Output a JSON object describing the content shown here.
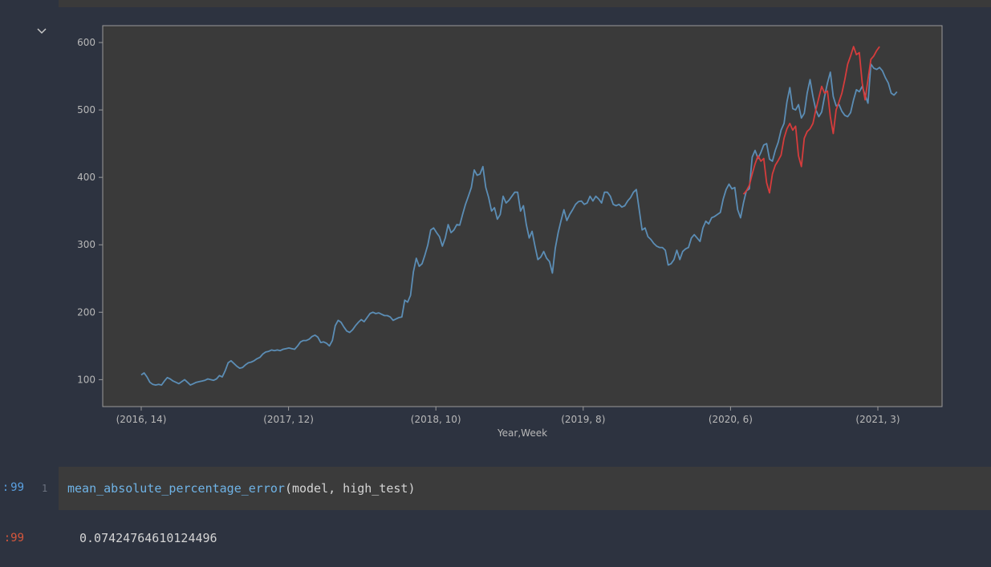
{
  "notebook": {
    "cell_in_prompt": "99",
    "cell_in_prefix": ":",
    "cell_out_prompt": "99",
    "cell_out_prefix": ":",
    "line_number": "1",
    "code": {
      "function_name": "mean_absolute_percentage_error",
      "args": "(model, high_test)"
    },
    "output_value": "0.07424764610124496",
    "colors": {
      "background": "#2d3340",
      "cell_background": "#3b3b3b",
      "prompt_in": "#5aa0e0",
      "prompt_out": "#d6573c"
    }
  },
  "chart_data": {
    "type": "line",
    "xlabel": "Year,Week",
    "ylabel": "",
    "title": "",
    "x_tick_labels": [
      "(2016, 14)",
      "(2017, 12)",
      "(2018, 10)",
      "(2019, 8)",
      "(2020, 6)",
      "(2021, 3)"
    ],
    "y_ticks": [
      100,
      200,
      300,
      400,
      500,
      600
    ],
    "ylim": [
      60,
      625
    ],
    "x_count": 264,
    "grid": false,
    "legend": "none",
    "series": [
      {
        "color": "#5b8db5",
        "points": [
          [
            0,
            107
          ],
          [
            1,
            110
          ],
          [
            2,
            104
          ],
          [
            3,
            96
          ],
          [
            4,
            93
          ],
          [
            5,
            92
          ],
          [
            6,
            93
          ],
          [
            7,
            92
          ],
          [
            8,
            98
          ],
          [
            9,
            103
          ],
          [
            10,
            101
          ],
          [
            11,
            98
          ],
          [
            12,
            96
          ],
          [
            13,
            94
          ],
          [
            14,
            97
          ],
          [
            15,
            100
          ],
          [
            16,
            96
          ],
          [
            17,
            92
          ],
          [
            18,
            94
          ],
          [
            19,
            96
          ],
          [
            20,
            97
          ],
          [
            21,
            98
          ],
          [
            22,
            99
          ],
          [
            23,
            101
          ],
          [
            24,
            100
          ],
          [
            25,
            99
          ],
          [
            26,
            101
          ],
          [
            27,
            106
          ],
          [
            28,
            104
          ],
          [
            29,
            113
          ],
          [
            30,
            125
          ],
          [
            31,
            128
          ],
          [
            32,
            124
          ],
          [
            33,
            120
          ],
          [
            34,
            117
          ],
          [
            35,
            118
          ],
          [
            36,
            122
          ],
          [
            37,
            125
          ],
          [
            38,
            126
          ],
          [
            39,
            128
          ],
          [
            40,
            131
          ],
          [
            41,
            133
          ],
          [
            42,
            138
          ],
          [
            43,
            141
          ],
          [
            44,
            142
          ],
          [
            45,
            144
          ],
          [
            46,
            143
          ],
          [
            47,
            144
          ],
          [
            48,
            143
          ],
          [
            49,
            145
          ],
          [
            50,
            146
          ],
          [
            51,
            147
          ],
          [
            52,
            146
          ],
          [
            53,
            145
          ],
          [
            54,
            150
          ],
          [
            55,
            156
          ],
          [
            56,
            158
          ],
          [
            57,
            158
          ],
          [
            58,
            160
          ],
          [
            59,
            164
          ],
          [
            60,
            166
          ],
          [
            61,
            163
          ],
          [
            62,
            155
          ],
          [
            63,
            156
          ],
          [
            64,
            154
          ],
          [
            65,
            150
          ],
          [
            66,
            158
          ],
          [
            67,
            180
          ],
          [
            68,
            188
          ],
          [
            69,
            185
          ],
          [
            70,
            178
          ],
          [
            71,
            172
          ],
          [
            72,
            170
          ],
          [
            73,
            174
          ],
          [
            74,
            180
          ],
          [
            75,
            185
          ],
          [
            76,
            189
          ],
          [
            77,
            186
          ],
          [
            78,
            192
          ],
          [
            79,
            198
          ],
          [
            80,
            200
          ],
          [
            81,
            198
          ],
          [
            82,
            199
          ],
          [
            83,
            197
          ],
          [
            84,
            195
          ],
          [
            85,
            195
          ],
          [
            86,
            193
          ],
          [
            87,
            188
          ],
          [
            88,
            190
          ],
          [
            89,
            192
          ],
          [
            90,
            193
          ],
          [
            91,
            218
          ],
          [
            92,
            215
          ],
          [
            93,
            225
          ],
          [
            94,
            260
          ],
          [
            95,
            280
          ],
          [
            96,
            268
          ],
          [
            97,
            272
          ],
          [
            98,
            285
          ],
          [
            99,
            300
          ],
          [
            100,
            322
          ],
          [
            101,
            325
          ],
          [
            102,
            318
          ],
          [
            103,
            312
          ],
          [
            104,
            298
          ],
          [
            105,
            310
          ],
          [
            106,
            330
          ],
          [
            107,
            318
          ],
          [
            108,
            322
          ],
          [
            109,
            330
          ],
          [
            110,
            329
          ],
          [
            111,
            345
          ],
          [
            112,
            360
          ],
          [
            113,
            372
          ],
          [
            114,
            385
          ],
          [
            115,
            411
          ],
          [
            116,
            403
          ],
          [
            117,
            405
          ],
          [
            118,
            416
          ],
          [
            119,
            385
          ],
          [
            120,
            370
          ],
          [
            121,
            350
          ],
          [
            122,
            355
          ],
          [
            123,
            338
          ],
          [
            124,
            345
          ],
          [
            125,
            372
          ],
          [
            126,
            362
          ],
          [
            127,
            366
          ],
          [
            128,
            372
          ],
          [
            129,
            378
          ],
          [
            130,
            378
          ],
          [
            131,
            350
          ],
          [
            132,
            358
          ],
          [
            133,
            330
          ],
          [
            134,
            310
          ],
          [
            135,
            320
          ],
          [
            136,
            298
          ],
          [
            137,
            278
          ],
          [
            138,
            282
          ],
          [
            139,
            290
          ],
          [
            140,
            280
          ],
          [
            141,
            275
          ],
          [
            142,
            258
          ],
          [
            143,
            295
          ],
          [
            144,
            318
          ],
          [
            145,
            336
          ],
          [
            146,
            352
          ],
          [
            147,
            336
          ],
          [
            148,
            345
          ],
          [
            149,
            352
          ],
          [
            150,
            360
          ],
          [
            151,
            364
          ],
          [
            152,
            365
          ],
          [
            153,
            360
          ],
          [
            154,
            362
          ],
          [
            155,
            372
          ],
          [
            156,
            365
          ],
          [
            157,
            372
          ],
          [
            158,
            368
          ],
          [
            159,
            362
          ],
          [
            160,
            378
          ],
          [
            161,
            378
          ],
          [
            162,
            372
          ],
          [
            163,
            360
          ],
          [
            164,
            358
          ],
          [
            165,
            360
          ],
          [
            166,
            356
          ],
          [
            167,
            358
          ],
          [
            168,
            365
          ],
          [
            169,
            370
          ],
          [
            170,
            378
          ],
          [
            171,
            382
          ],
          [
            172,
            352
          ],
          [
            173,
            322
          ],
          [
            174,
            325
          ],
          [
            175,
            312
          ],
          [
            176,
            308
          ],
          [
            177,
            302
          ],
          [
            178,
            298
          ],
          [
            179,
            296
          ],
          [
            180,
            296
          ],
          [
            181,
            292
          ],
          [
            182,
            270
          ],
          [
            183,
            272
          ],
          [
            184,
            278
          ],
          [
            185,
            292
          ],
          [
            186,
            278
          ],
          [
            187,
            290
          ],
          [
            188,
            294
          ],
          [
            189,
            296
          ],
          [
            190,
            310
          ],
          [
            191,
            315
          ],
          [
            192,
            310
          ],
          [
            193,
            305
          ],
          [
            194,
            325
          ],
          [
            195,
            335
          ],
          [
            196,
            331
          ],
          [
            197,
            340
          ],
          [
            198,
            342
          ],
          [
            199,
            345
          ],
          [
            200,
            348
          ],
          [
            201,
            368
          ],
          [
            202,
            382
          ],
          [
            203,
            390
          ],
          [
            204,
            383
          ],
          [
            205,
            385
          ],
          [
            206,
            352
          ],
          [
            207,
            340
          ],
          [
            208,
            362
          ],
          [
            209,
            380
          ],
          [
            210,
            383
          ],
          [
            211,
            430
          ],
          [
            212,
            440
          ],
          [
            213,
            428
          ],
          [
            214,
            437
          ],
          [
            215,
            448
          ],
          [
            216,
            450
          ],
          [
            217,
            427
          ],
          [
            218,
            424
          ],
          [
            219,
            440
          ],
          [
            220,
            452
          ],
          [
            221,
            470
          ],
          [
            222,
            480
          ],
          [
            223,
            512
          ],
          [
            224,
            533
          ],
          [
            225,
            502
          ],
          [
            226,
            500
          ],
          [
            227,
            508
          ],
          [
            228,
            488
          ],
          [
            229,
            495
          ],
          [
            230,
            525
          ],
          [
            231,
            545
          ],
          [
            232,
            520
          ],
          [
            233,
            500
          ],
          [
            234,
            490
          ],
          [
            235,
            497
          ],
          [
            236,
            520
          ],
          [
            237,
            540
          ],
          [
            238,
            556
          ],
          [
            239,
            520
          ],
          [
            240,
            506
          ],
          [
            241,
            508
          ],
          [
            242,
            498
          ],
          [
            243,
            492
          ],
          [
            244,
            490
          ],
          [
            245,
            496
          ],
          [
            246,
            515
          ],
          [
            247,
            530
          ],
          [
            248,
            527
          ],
          [
            249,
            535
          ],
          [
            250,
            522
          ],
          [
            251,
            510
          ],
          [
            252,
            568
          ],
          [
            253,
            562
          ],
          [
            254,
            560
          ],
          [
            255,
            563
          ],
          [
            256,
            558
          ],
          [
            257,
            548
          ],
          [
            258,
            540
          ],
          [
            259,
            525
          ],
          [
            260,
            522
          ],
          [
            261,
            527
          ]
        ]
      },
      {
        "color": "#d63c3c",
        "points": [
          [
            208,
            375
          ],
          [
            209,
            380
          ],
          [
            210,
            388
          ],
          [
            211,
            405
          ],
          [
            212,
            420
          ],
          [
            213,
            432
          ],
          [
            214,
            424
          ],
          [
            215,
            428
          ],
          [
            216,
            392
          ],
          [
            217,
            377
          ],
          [
            218,
            405
          ],
          [
            219,
            418
          ],
          [
            220,
            425
          ],
          [
            221,
            433
          ],
          [
            222,
            458
          ],
          [
            223,
            472
          ],
          [
            224,
            480
          ],
          [
            225,
            470
          ],
          [
            226,
            476
          ],
          [
            227,
            432
          ],
          [
            228,
            416
          ],
          [
            229,
            458
          ],
          [
            230,
            468
          ],
          [
            231,
            472
          ],
          [
            232,
            480
          ],
          [
            233,
            500
          ],
          [
            234,
            518
          ],
          [
            235,
            535
          ],
          [
            236,
            525
          ],
          [
            237,
            528
          ],
          [
            238,
            490
          ],
          [
            239,
            465
          ],
          [
            240,
            500
          ],
          [
            241,
            512
          ],
          [
            242,
            525
          ],
          [
            243,
            545
          ],
          [
            244,
            568
          ],
          [
            245,
            580
          ],
          [
            246,
            594
          ],
          [
            247,
            582
          ],
          [
            248,
            585
          ],
          [
            249,
            540
          ],
          [
            250,
            515
          ],
          [
            251,
            545
          ],
          [
            252,
            575
          ],
          [
            253,
            580
          ],
          [
            254,
            588
          ],
          [
            255,
            594
          ]
        ]
      }
    ]
  }
}
